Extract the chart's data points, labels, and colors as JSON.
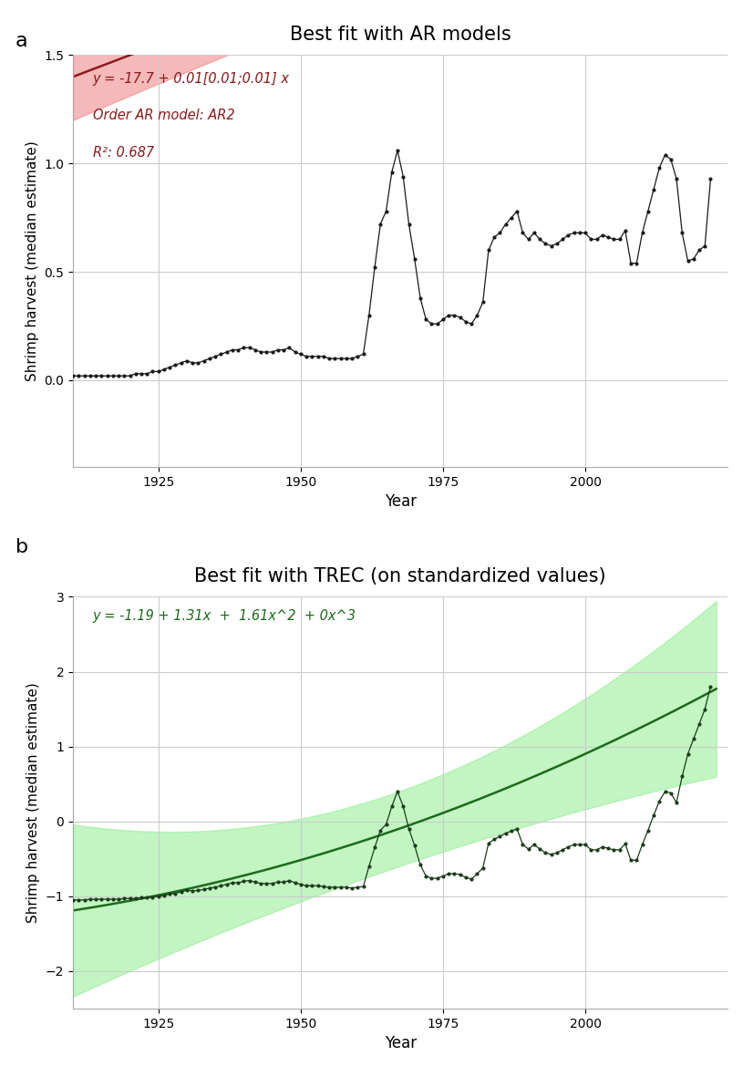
{
  "title_a": "Best fit with AR models",
  "title_b": "Best fit with TREC (on standardized values)",
  "label_a": "a",
  "label_b": "b",
  "xlabel": "Year",
  "ylabel": "Shrimp harvest (median estimate)",
  "annotation_a_line1": "y = -17.7 + 0.01[0.01;0.01] x",
  "annotation_a_line2": "Order AR model: AR2",
  "annotation_a_line3": "R²: 0.687",
  "annotation_b": "y = -1.19 + 1.31x  +  1.61x^2  + 0x^3",
  "ylim_a": [
    -0.4,
    1.5
  ],
  "ylim_b": [
    -2.5,
    3.0
  ],
  "xlim": [
    1910,
    2025
  ],
  "yticks_a": [
    0.0,
    0.5,
    1.0,
    1.5
  ],
  "yticks_b": [
    -2,
    -1,
    0,
    1,
    2,
    3
  ],
  "xticks": [
    1925,
    1950,
    1975,
    2000
  ],
  "trend_color_a": "#8B1A1A",
  "trend_ci_color_a": "#F08080",
  "trend_color_b": "#1a6b1a",
  "trend_ci_color_b": "#90EE90",
  "data_color_a": "#1a1a1a",
  "data_color_b": "#1a3d1a",
  "background_color": "#ffffff",
  "grid_color": "#cccccc",
  "years": [
    1910,
    1911,
    1912,
    1913,
    1914,
    1915,
    1916,
    1917,
    1918,
    1919,
    1920,
    1921,
    1922,
    1923,
    1924,
    1925,
    1926,
    1927,
    1928,
    1929,
    1930,
    1931,
    1932,
    1933,
    1934,
    1935,
    1936,
    1937,
    1938,
    1939,
    1940,
    1941,
    1942,
    1943,
    1944,
    1945,
    1946,
    1947,
    1948,
    1949,
    1950,
    1951,
    1952,
    1953,
    1954,
    1955,
    1956,
    1957,
    1958,
    1959,
    1960,
    1961,
    1962,
    1963,
    1964,
    1965,
    1966,
    1967,
    1968,
    1969,
    1970,
    1971,
    1972,
    1973,
    1974,
    1975,
    1976,
    1977,
    1978,
    1979,
    1980,
    1981,
    1982,
    1983,
    1984,
    1985,
    1986,
    1987,
    1988,
    1989,
    1990,
    1991,
    1992,
    1993,
    1994,
    1995,
    1996,
    1997,
    1998,
    1999,
    2000,
    2001,
    2002,
    2003,
    2004,
    2005,
    2006,
    2007,
    2008,
    2009,
    2010,
    2011,
    2012,
    2013,
    2014,
    2015,
    2016,
    2017,
    2018,
    2019,
    2020,
    2021,
    2022
  ],
  "values_a": [
    0.02,
    0.02,
    0.02,
    0.02,
    0.02,
    0.02,
    0.02,
    0.02,
    0.02,
    0.02,
    0.02,
    0.03,
    0.03,
    0.03,
    0.04,
    0.04,
    0.05,
    0.06,
    0.07,
    0.08,
    0.09,
    0.08,
    0.08,
    0.09,
    0.1,
    0.11,
    0.12,
    0.13,
    0.14,
    0.14,
    0.15,
    0.15,
    0.14,
    0.13,
    0.13,
    0.13,
    0.14,
    0.14,
    0.15,
    0.13,
    0.12,
    0.11,
    0.11,
    0.11,
    0.11,
    0.1,
    0.1,
    0.1,
    0.1,
    0.1,
    0.11,
    0.12,
    0.3,
    0.52,
    0.72,
    0.78,
    0.96,
    1.06,
    0.94,
    0.72,
    0.56,
    0.38,
    0.28,
    0.26,
    0.26,
    0.28,
    0.3,
    0.3,
    0.29,
    0.27,
    0.26,
    0.3,
    0.36,
    0.6,
    0.66,
    0.68,
    0.72,
    0.75,
    0.78,
    0.68,
    0.65,
    0.68,
    0.65,
    0.63,
    0.62,
    0.63,
    0.65,
    0.67,
    0.68,
    0.68,
    0.68,
    0.65,
    0.65,
    0.67,
    0.66,
    0.65,
    0.65,
    0.69,
    0.54,
    0.54,
    0.68,
    0.78,
    0.88,
    0.98,
    1.04,
    1.02,
    0.93,
    0.68,
    0.55,
    0.56,
    0.6,
    0.62,
    0.93
  ],
  "values_b": [
    -1.05,
    -1.05,
    -1.05,
    -1.04,
    -1.04,
    -1.04,
    -1.04,
    -1.04,
    -1.04,
    -1.03,
    -1.03,
    -1.03,
    -1.02,
    -1.02,
    -1.01,
    -1.0,
    -0.99,
    -0.97,
    -0.96,
    -0.94,
    -0.92,
    -0.93,
    -0.92,
    -0.91,
    -0.89,
    -0.88,
    -0.86,
    -0.84,
    -0.82,
    -0.82,
    -0.8,
    -0.79,
    -0.81,
    -0.83,
    -0.83,
    -0.83,
    -0.81,
    -0.81,
    -0.79,
    -0.82,
    -0.84,
    -0.86,
    -0.86,
    -0.86,
    -0.87,
    -0.88,
    -0.88,
    -0.88,
    -0.88,
    -0.89,
    -0.88,
    -0.87,
    -0.6,
    -0.35,
    -0.12,
    -0.04,
    0.2,
    0.4,
    0.2,
    -0.1,
    -0.32,
    -0.58,
    -0.73,
    -0.76,
    -0.76,
    -0.73,
    -0.7,
    -0.7,
    -0.71,
    -0.75,
    -0.77,
    -0.7,
    -0.62,
    -0.29,
    -0.24,
    -0.2,
    -0.16,
    -0.13,
    -0.1,
    -0.31,
    -0.37,
    -0.31,
    -0.37,
    -0.42,
    -0.44,
    -0.42,
    -0.38,
    -0.34,
    -0.31,
    -0.31,
    -0.31,
    -0.38,
    -0.38,
    -0.34,
    -0.36,
    -0.38,
    -0.38,
    -0.3,
    -0.52,
    -0.52,
    -0.31,
    -0.12,
    0.08,
    0.27,
    0.4,
    0.38,
    0.25,
    0.6,
    0.9,
    1.1,
    1.3,
    1.5,
    1.8
  ],
  "trec_b_intercept": -1.19,
  "trec_b_c1": 1.31,
  "trec_b_c2": 1.61,
  "trec_b_c3": 0.0,
  "year_std_min": 1910,
  "year_std_range": 112
}
